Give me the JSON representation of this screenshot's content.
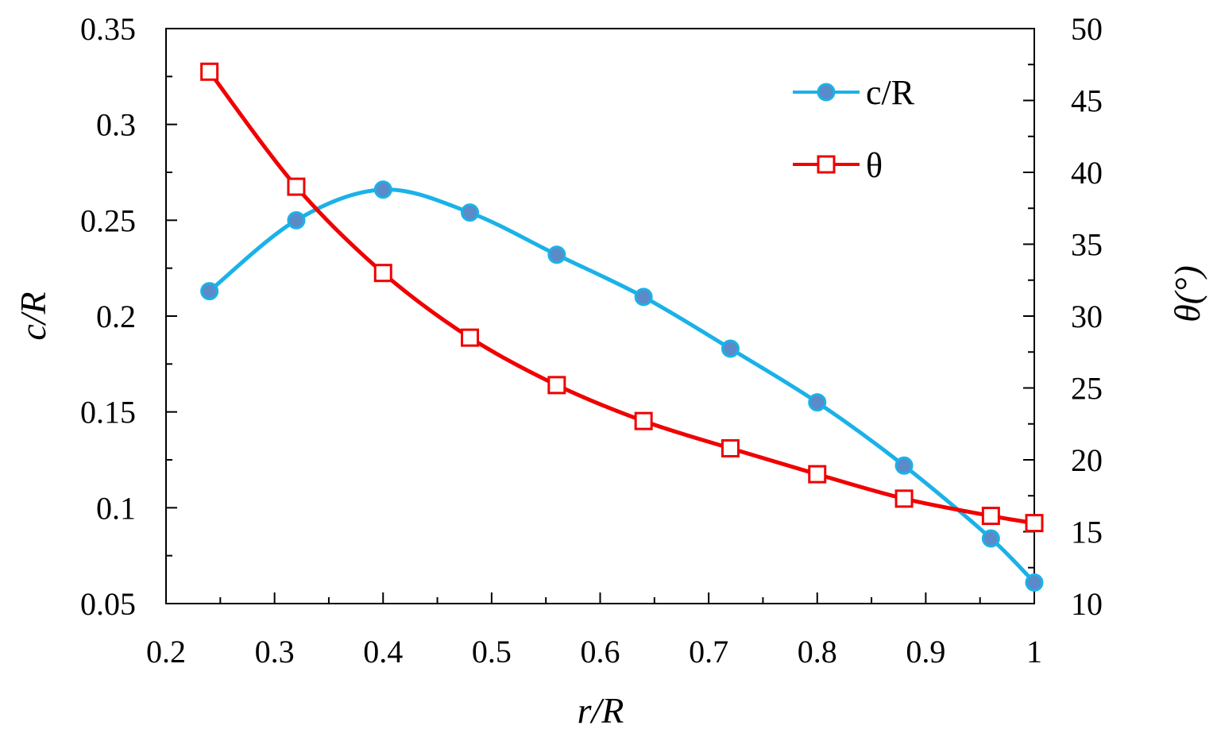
{
  "chart_data": {
    "type": "line",
    "title": "",
    "xlabel": "r/R",
    "ylabel": "c/R",
    "y2label": "θ(°)",
    "xlim": [
      0.2,
      1.0
    ],
    "ylim": [
      0.05,
      0.35
    ],
    "y2lim": [
      10,
      50
    ],
    "grid": false,
    "legend_position": "top-right",
    "x_ticks": [
      "0.2",
      "0.3",
      "0.4",
      "0.5",
      "0.6",
      "0.7",
      "0.8",
      "0.9",
      "1"
    ],
    "y_ticks": [
      "0.05",
      "0.1",
      "0.15",
      "0.2",
      "0.25",
      "0.3",
      "0.35"
    ],
    "y2_ticks": [
      "10",
      "15",
      "20",
      "25",
      "30",
      "35",
      "40",
      "45",
      "50"
    ],
    "series": [
      {
        "name": "c/R",
        "axis": "left",
        "color": "#1ab2e8",
        "marker": "filled-circle",
        "marker_color": "#5b8ac8",
        "x": [
          0.24,
          0.32,
          0.4,
          0.48,
          0.56,
          0.64,
          0.72,
          0.8,
          0.88,
          0.96,
          1.0
        ],
        "values": [
          0.213,
          0.25,
          0.266,
          0.254,
          0.232,
          0.21,
          0.183,
          0.155,
          0.122,
          0.084,
          0.061
        ]
      },
      {
        "name": "θ",
        "axis": "right",
        "color": "#f00000",
        "marker": "open-square",
        "marker_color": "#f00000",
        "x": [
          0.24,
          0.32,
          0.4,
          0.48,
          0.56,
          0.64,
          0.72,
          0.8,
          0.88,
          0.96,
          1.0
        ],
        "values": [
          47.0,
          39.0,
          33.0,
          28.5,
          25.2,
          22.7,
          20.8,
          19.0,
          17.3,
          16.1,
          15.6
        ]
      }
    ]
  }
}
